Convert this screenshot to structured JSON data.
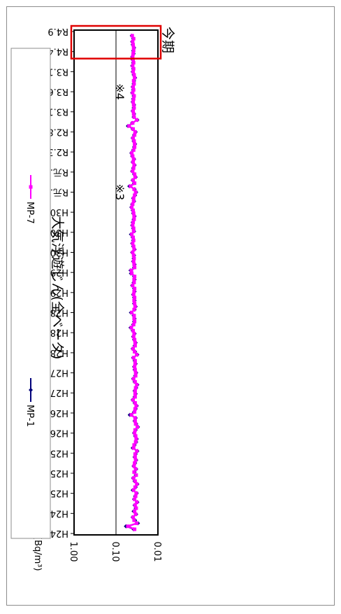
{
  "chart_data": {
    "type": "line",
    "orientation": "rotated-90-clockwise",
    "title": "大気浮遊じん(全ベータ)",
    "unit_label": "(Bq/m³)",
    "y_scale": "log",
    "ylim": [
      0.01,
      1.0
    ],
    "y_ticks": [
      "1.00",
      "0.10",
      "0.01"
    ],
    "x_tick_labels": [
      "H24.4",
      "H24.9",
      "H25.2",
      "H25.7",
      "H25.12",
      "H26.5",
      "H26.10",
      "H27.3",
      "H27.8",
      "H28.1",
      "H28.6",
      "H28.11",
      "H29.4",
      "H29.9",
      "H30.2",
      "H30.7",
      "H30.12",
      "R元.5",
      "R元.10",
      "R2.3",
      "R2.8",
      "R3.1",
      "R3.6",
      "R3.11",
      "R4.4",
      "R4.9"
    ],
    "annotations": [
      {
        "text": "※3",
        "at": "R元.5"
      },
      {
        "text": "※4",
        "at": "R3.6"
      },
      {
        "text": "今期",
        "at": "R4.4–R4.9",
        "box_color": "#e00000"
      }
    ],
    "legend_position": "bottom",
    "series": [
      {
        "name": "MP-1",
        "color": "#00007a",
        "marker": "diamond",
        "values": [
          0.038,
          0.058,
          0.03,
          0.035,
          0.04,
          0.033,
          0.038,
          0.034,
          0.036,
          0.031,
          0.037,
          0.035,
          0.032,
          0.04,
          0.034,
          0.031,
          0.036,
          0.039,
          0.034,
          0.036,
          0.033,
          0.038,
          0.035,
          0.033,
          0.036,
          0.034,
          0.031,
          0.04,
          0.036,
          0.033,
          0.032,
          0.035,
          0.037,
          0.034,
          0.03,
          0.033,
          0.036,
          0.034,
          0.047,
          0.037,
          0.034,
          0.032,
          0.036,
          0.04,
          0.036,
          0.034,
          0.036,
          0.033,
          0.031,
          0.036,
          0.039,
          0.035,
          0.033,
          0.036,
          0.037,
          0.034,
          0.036,
          0.039,
          0.031,
          0.035,
          0.04,
          0.036,
          0.034,
          0.037,
          0.039,
          0.036,
          0.04,
          0.045,
          0.039,
          0.037,
          0.036,
          0.038,
          0.044,
          0.036,
          0.034,
          0.037,
          0.036,
          0.037,
          0.039,
          0.036,
          0.037,
          0.041,
          0.038,
          0.036,
          0.037,
          0.044,
          0.045,
          0.037,
          0.036,
          0.039,
          0.038,
          0.037,
          0.041,
          0.036,
          0.039,
          0.041,
          0.039,
          0.04,
          0.044,
          0.037,
          0.039,
          0.041,
          0.04,
          0.038,
          0.036,
          0.039,
          0.04,
          0.043,
          0.041,
          0.037,
          0.039,
          0.035,
          0.033,
          0.036,
          0.048,
          0.037,
          0.04,
          0.034,
          0.037,
          0.041,
          0.039,
          0.036,
          0.04,
          0.037,
          0.041,
          0.043,
          0.039,
          0.037,
          0.035,
          0.038,
          0.04,
          0.037,
          0.034,
          0.04,
          0.052,
          0.041,
          0.031,
          0.038,
          0.037,
          0.04,
          0.038,
          0.037,
          0.04,
          0.039,
          0.038,
          0.041,
          0.039,
          0.04,
          0.038,
          0.037,
          0.035,
          0.038,
          0.04,
          0.039,
          0.041,
          0.039,
          0.04,
          0.041,
          0.038,
          0.039,
          0.037,
          0.04,
          0.041,
          0.039,
          0.042
        ]
      },
      {
        "name": "MP-7",
        "color": "#ff00ff",
        "marker": "square",
        "values": [
          0.036,
          0.052,
          0.032,
          0.037,
          0.039,
          0.034,
          0.036,
          0.033,
          0.035,
          0.032,
          0.036,
          0.034,
          0.033,
          0.038,
          0.035,
          0.032,
          0.035,
          0.038,
          0.033,
          0.037,
          0.034,
          0.037,
          0.036,
          0.034,
          0.035,
          0.035,
          0.032,
          0.038,
          0.037,
          0.034,
          0.033,
          0.034,
          0.036,
          0.035,
          0.031,
          0.034,
          0.035,
          0.035,
          0.043,
          0.036,
          0.035,
          0.033,
          0.035,
          0.039,
          0.035,
          0.035,
          0.035,
          0.034,
          0.032,
          0.035,
          0.038,
          0.034,
          0.034,
          0.035,
          0.036,
          0.035,
          0.035,
          0.038,
          0.032,
          0.036,
          0.039,
          0.035,
          0.035,
          0.036,
          0.038,
          0.037,
          0.039,
          0.043,
          0.038,
          0.036,
          0.037,
          0.037,
          0.042,
          0.037,
          0.035,
          0.036,
          0.037,
          0.036,
          0.038,
          0.037,
          0.036,
          0.04,
          0.037,
          0.037,
          0.036,
          0.042,
          0.043,
          0.036,
          0.037,
          0.038,
          0.037,
          0.038,
          0.04,
          0.037,
          0.038,
          0.04,
          0.038,
          0.039,
          0.042,
          0.038,
          0.038,
          0.04,
          0.039,
          0.037,
          0.037,
          0.038,
          0.039,
          0.042,
          0.04,
          0.038,
          0.038,
          0.036,
          0.034,
          0.037,
          0.045,
          0.036,
          0.039,
          0.035,
          0.036,
          0.04,
          0.038,
          0.037,
          0.039,
          0.038,
          0.04,
          0.042,
          0.038,
          0.036,
          0.036,
          0.037,
          0.039,
          0.036,
          0.035,
          0.039,
          0.049,
          0.04,
          0.032,
          0.037,
          0.038,
          0.039,
          0.037,
          0.038,
          0.039,
          0.038,
          0.037,
          0.04,
          0.038,
          0.039,
          0.037,
          0.038,
          0.036,
          0.037,
          0.039,
          0.038,
          0.04,
          0.038,
          0.039,
          0.04,
          0.039,
          0.038,
          0.038,
          0.039,
          0.04,
          0.038,
          0.041
        ]
      }
    ]
  },
  "colors": {
    "frame": "#8c8c8c",
    "plot_border": "#000000",
    "gridline": "#000000",
    "highlight": "#e00000"
  }
}
